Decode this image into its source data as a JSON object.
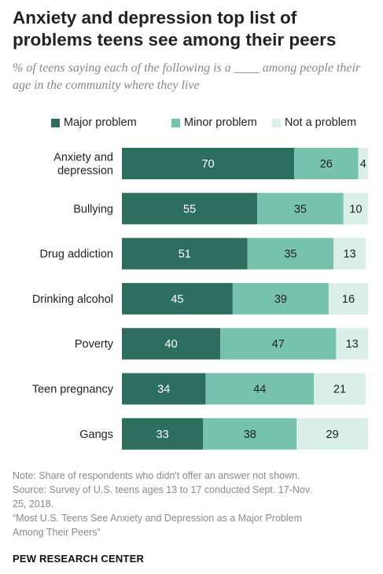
{
  "header": {
    "title": "Anxiety and depression top list of problems teens see among their peers",
    "subtitle": "% of teens saying each of the following is a ____ among people their age in the community where they live"
  },
  "legend": [
    {
      "label": "Major problem",
      "color": "#2d6e5e"
    },
    {
      "label": "Minor problem",
      "color": "#77c2ad"
    },
    {
      "label": "Not a problem",
      "color": "#d9efe8"
    }
  ],
  "chart_data": {
    "type": "bar",
    "orientation": "horizontal",
    "stacked": true,
    "categories": [
      [
        "Anxiety and",
        "depression"
      ],
      [
        "Bullying"
      ],
      [
        "Drug addiction"
      ],
      [
        "Drinking alcohol"
      ],
      [
        "Poverty"
      ],
      [
        "Teen pregnancy"
      ],
      [
        "Gangs"
      ]
    ],
    "series": [
      {
        "name": "Major problem",
        "color": "#2d6e5e",
        "label_color": "#ffffff",
        "values": [
          70,
          55,
          51,
          45,
          40,
          34,
          33
        ]
      },
      {
        "name": "Minor problem",
        "color": "#77c2ad",
        "label_color": "#222222",
        "values": [
          26,
          35,
          35,
          39,
          47,
          44,
          38
        ]
      },
      {
        "name": "Not a problem",
        "color": "#d9efe8",
        "label_color": "#222222",
        "values": [
          4,
          10,
          13,
          16,
          13,
          21,
          29
        ]
      }
    ],
    "xlim": [
      0,
      100
    ],
    "grid": false,
    "legend_position": "top"
  },
  "footer": {
    "notes": [
      "Note: Share of respondents who didn't offer an answer not shown.",
      "Source: Survey of U.S. teens ages 13 to 17 conducted Sept. 17-Nov.",
      "25, 2018.",
      "“Most U.S. Teens See Anxiety and Depression as a Major Problem",
      "Among Their Peers”"
    ],
    "organization": "PEW RESEARCH CENTER"
  }
}
